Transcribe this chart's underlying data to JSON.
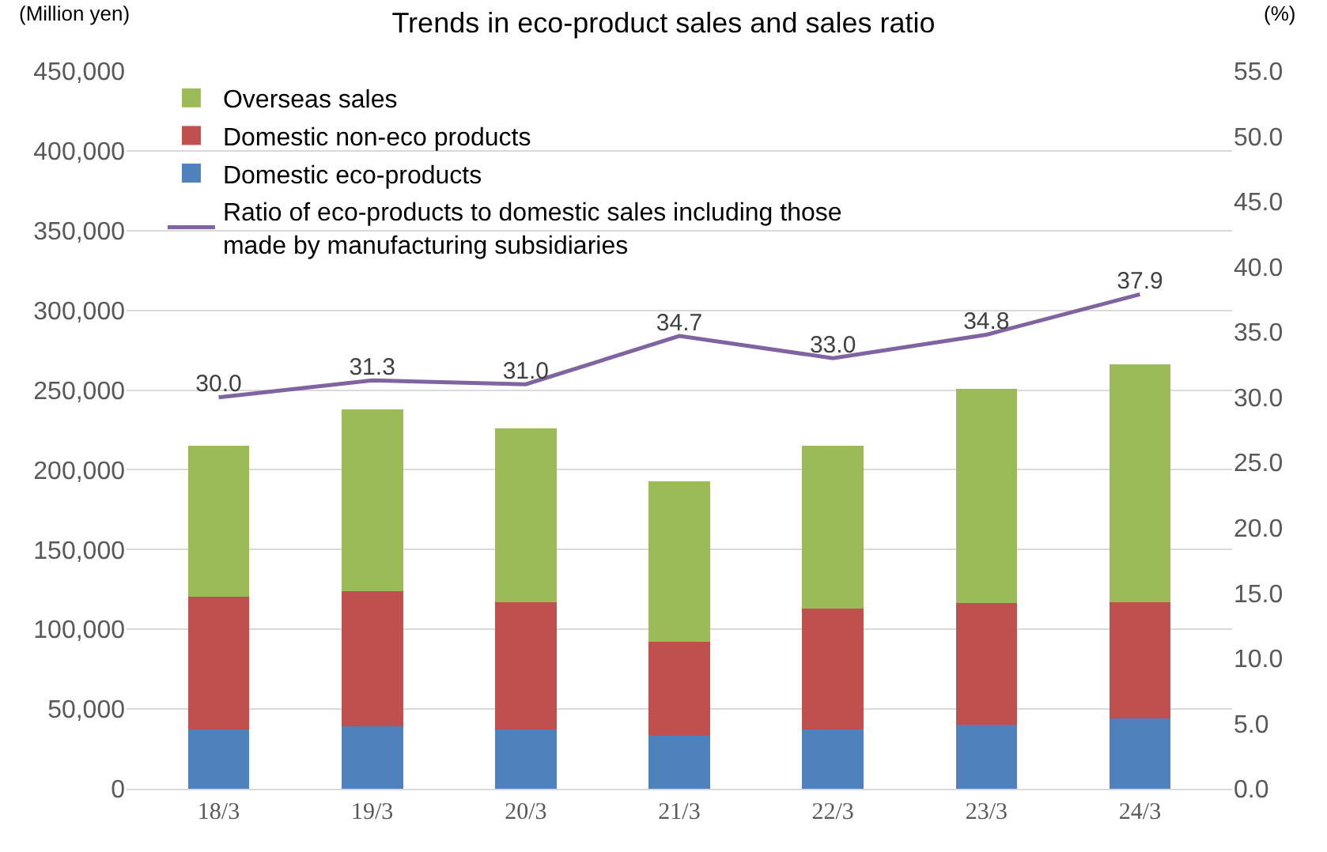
{
  "chart_data": {
    "type": "bar",
    "title": "Trends in eco-product sales and sales ratio",
    "ylabel": "(Million yen)",
    "y2label": "(%)",
    "categories": [
      "18/3",
      "19/3",
      "20/3",
      "21/3",
      "22/3",
      "23/3",
      "24/3"
    ],
    "stacked": true,
    "series": [
      {
        "name": "Domestic eco-products",
        "color": "#4f81bd",
        "values": [
          37000,
          39000,
          37000,
          33000,
          37000,
          40000,
          44000
        ]
      },
      {
        "name": "Domestic non-eco products",
        "color": "#c0504d",
        "values": [
          83500,
          85000,
          80000,
          59000,
          76000,
          76500,
          73000
        ]
      },
      {
        "name": "Overseas sales",
        "color": "#9bbb59",
        "values": [
          94500,
          114000,
          109000,
          101000,
          102000,
          134500,
          149000
        ]
      },
      {
        "name": "Ratio of eco-products to domestic sales including those made by manufacturing subsidiaries",
        "type": "line",
        "axis": "y2",
        "color": "#8064a2",
        "values": [
          30.0,
          31.3,
          31.0,
          34.7,
          33.0,
          34.8,
          37.9
        ],
        "value_labels": [
          "30.0",
          "31.3",
          "31.0",
          "34.7",
          "33.0",
          "34.8",
          "37.9"
        ]
      }
    ],
    "ylim": [
      0,
      450000
    ],
    "yticks": [
      {
        "value": 0,
        "label": "0"
      },
      {
        "value": 50000,
        "label": "50,000"
      },
      {
        "value": 100000,
        "label": "100,000"
      },
      {
        "value": 150000,
        "label": "150,000"
      },
      {
        "value": 200000,
        "label": "200,000"
      },
      {
        "value": 250000,
        "label": "250,000"
      },
      {
        "value": 300000,
        "label": "300,000"
      },
      {
        "value": 350000,
        "label": "350,000"
      },
      {
        "value": 400000,
        "label": "400,000"
      },
      {
        "value": 450000,
        "label": "450,000"
      }
    ],
    "y2lim": [
      0,
      55
    ],
    "y2ticks": [
      {
        "value": 0,
        "label": "0.0"
      },
      {
        "value": 5,
        "label": "5.0"
      },
      {
        "value": 10,
        "label": "10.0"
      },
      {
        "value": 15,
        "label": "15.0"
      },
      {
        "value": 20,
        "label": "20.0"
      },
      {
        "value": 25,
        "label": "25.0"
      },
      {
        "value": 30,
        "label": "30.0"
      },
      {
        "value": 35,
        "label": "35.0"
      },
      {
        "value": 40,
        "label": "40.0"
      },
      {
        "value": 45,
        "label": "45.0"
      },
      {
        "value": 50,
        "label": "50.0"
      },
      {
        "value": 55,
        "label": "55.0"
      }
    ],
    "grid": "y",
    "legend": "top left",
    "marker": "none",
    "line_style": "solid"
  }
}
